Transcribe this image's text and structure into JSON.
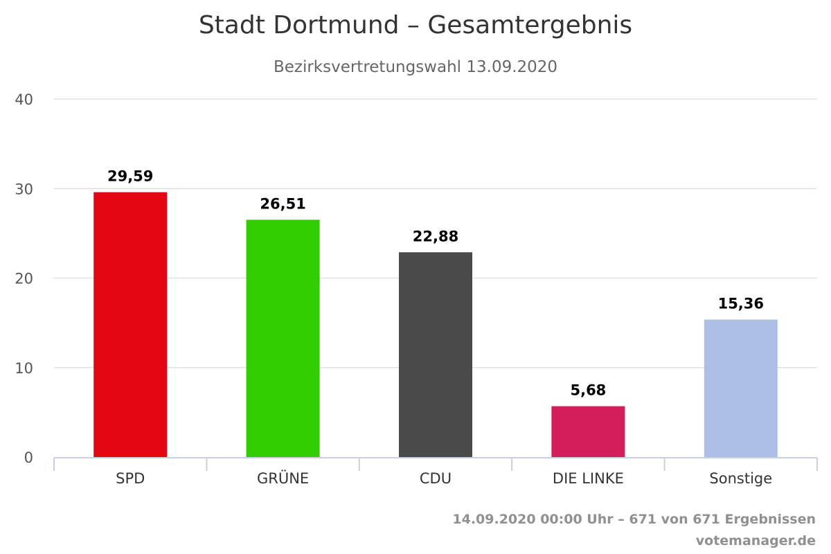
{
  "chart_data": {
    "type": "bar",
    "title": "Stadt Dortmund – Gesamtergebnis",
    "subtitle": "Bezirksvertretungswahl 13.09.2020",
    "categories": [
      "SPD",
      "GRÜNE",
      "CDU",
      "DIE LINKE",
      "Sonstige"
    ],
    "values": [
      29.59,
      26.51,
      22.88,
      5.68,
      15.36
    ],
    "value_labels": [
      "29,59",
      "26,51",
      "22,88",
      "5,68",
      "15,36"
    ],
    "colors": [
      "#e30613",
      "#32cd00",
      "#4a4a4a",
      "#d21d5b",
      "#adbfe6"
    ],
    "ylim": [
      0,
      40
    ],
    "yticks": [
      0,
      10,
      20,
      30,
      40
    ],
    "ytick_labels": [
      "0",
      "10",
      "20",
      "30",
      "40"
    ],
    "xlabel": "",
    "ylabel": "",
    "grid": true,
    "legend": "none"
  },
  "footer": {
    "status": "14.09.2020 00:00 Uhr – 671 von 671 Ergebnissen",
    "credit": "votemanager.de"
  }
}
